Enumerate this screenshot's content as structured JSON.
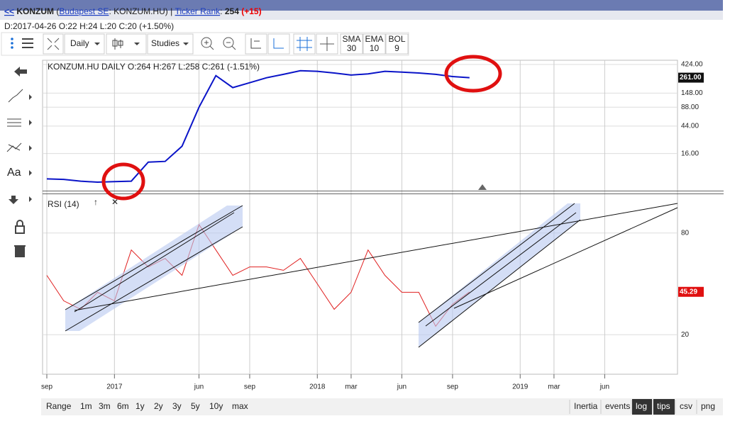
{
  "header": {
    "back": "<<",
    "symbol": "KONZUM",
    "exchange_open": "(",
    "exchange_link": "Budapest SE",
    "exchange_rest": ": KONZUM.HU)",
    "separator": "|",
    "rank_link": "Ticker Rank",
    "rank_colon": ":",
    "rank": "254",
    "rank_change": "(+15)"
  },
  "info_line": "D:2017-04-26 O:22 H:24 L:20 C:20 (+1.50%)",
  "toolbar": {
    "interval": "Daily",
    "studies": "Studies",
    "indicators": [
      {
        "name": "SMA",
        "period": "30"
      },
      {
        "name": "EMA",
        "period": "10"
      },
      {
        "name": "BOL",
        "period": "9"
      }
    ]
  },
  "sidebar": {
    "text_tool": "Aa"
  },
  "chart_data": [
    {
      "type": "line",
      "title": "KONZUM.HU  DAILY  O:264  H:267  L:258  C:261  (-1.51%)",
      "log_scale": true,
      "x": [
        "2016-09",
        "2016-10",
        "2016-11",
        "2016-12",
        "2017-01",
        "2017-02",
        "2017-03",
        "2017-04",
        "2017-05",
        "2017-06",
        "2017-07",
        "2017-08",
        "2017-09",
        "2017-10",
        "2017-11",
        "2017-12",
        "2018-01",
        "2018-02",
        "2018-03",
        "2018-04",
        "2018-05",
        "2018-06",
        "2018-07",
        "2018-08",
        "2018-09",
        "2018-10"
      ],
      "series": [
        {
          "name": "KONZUM.HU",
          "color": "#0a14c8",
          "values": [
            6.3,
            6.2,
            5.8,
            5.6,
            5.7,
            5.8,
            11.7,
            12,
            21,
            88,
            281,
            181,
            217,
            260,
            295,
            337,
            330,
            310,
            287,
            300,
            330,
            320,
            310,
            295,
            272,
            261
          ],
          "value_labels": [
            null,
            null,
            null,
            null,
            null,
            null,
            null,
            null,
            null,
            null,
            null,
            null,
            null,
            null,
            null,
            null,
            null,
            null,
            null,
            null,
            null,
            null,
            null,
            null,
            null,
            "261.00"
          ]
        }
      ],
      "ylim": [
        4.2,
        470
      ],
      "yticks": [
        {
          "value": 424,
          "label": "424.00"
        },
        {
          "value": 148,
          "label": "148.00"
        },
        {
          "value": 88,
          "label": "88.00"
        },
        {
          "value": 44,
          "label": "44.00"
        },
        {
          "value": 16,
          "label": "16.00"
        }
      ]
    },
    {
      "type": "line",
      "title": "RSI (14)",
      "x": [
        "2016-09",
        "2016-10",
        "2016-11",
        "2016-12",
        "2017-01",
        "2017-02",
        "2017-03",
        "2017-04",
        "2017-05",
        "2017-06",
        "2017-07",
        "2017-08",
        "2017-09",
        "2017-10",
        "2017-11",
        "2017-12",
        "2018-01",
        "2018-02",
        "2018-03",
        "2018-04",
        "2018-05",
        "2018-06",
        "2018-07",
        "2018-08",
        "2018-09",
        "2018-10"
      ],
      "series": [
        {
          "name": "RSI",
          "color": "#e02020",
          "values": [
            55,
            40,
            35,
            45,
            40,
            70,
            60,
            65,
            55,
            85,
            70,
            55,
            60,
            60,
            58,
            65,
            50,
            35,
            45,
            70,
            55,
            45,
            45,
            25,
            38,
            45.29
          ]
        }
      ],
      "ylim": [
        0,
        100
      ],
      "yticks": [
        80,
        20
      ],
      "xticks": [
        {
          "value": "2016-09",
          "label": "sep"
        },
        {
          "value": "2017-01",
          "label": "2017"
        },
        {
          "value": "2017-06",
          "label": "jun"
        },
        {
          "value": "2017-09",
          "label": "sep"
        },
        {
          "value": "2018-01",
          "label": "2018"
        },
        {
          "value": "2018-03",
          "label": "mar"
        },
        {
          "value": "2018-06",
          "label": "jun"
        },
        {
          "value": "2018-09",
          "label": "sep"
        },
        {
          "value": "2019-01",
          "label": "2019"
        },
        {
          "value": "2019-03",
          "label": "mar"
        },
        {
          "value": "2019-06",
          "label": "jun"
        }
      ]
    }
  ],
  "range_buttons": [
    "Range",
    "1m",
    "3m",
    "6m",
    "1y",
    "2y",
    "3y",
    "5y",
    "10y",
    "max"
  ],
  "option_buttons": [
    {
      "label": "Inertia",
      "active": false
    },
    {
      "label": "events",
      "active": false
    },
    {
      "label": "log",
      "active": true
    },
    {
      "label": "tips",
      "active": true
    },
    {
      "label": "csv",
      "active": false
    },
    {
      "label": "png",
      "active": false
    }
  ]
}
